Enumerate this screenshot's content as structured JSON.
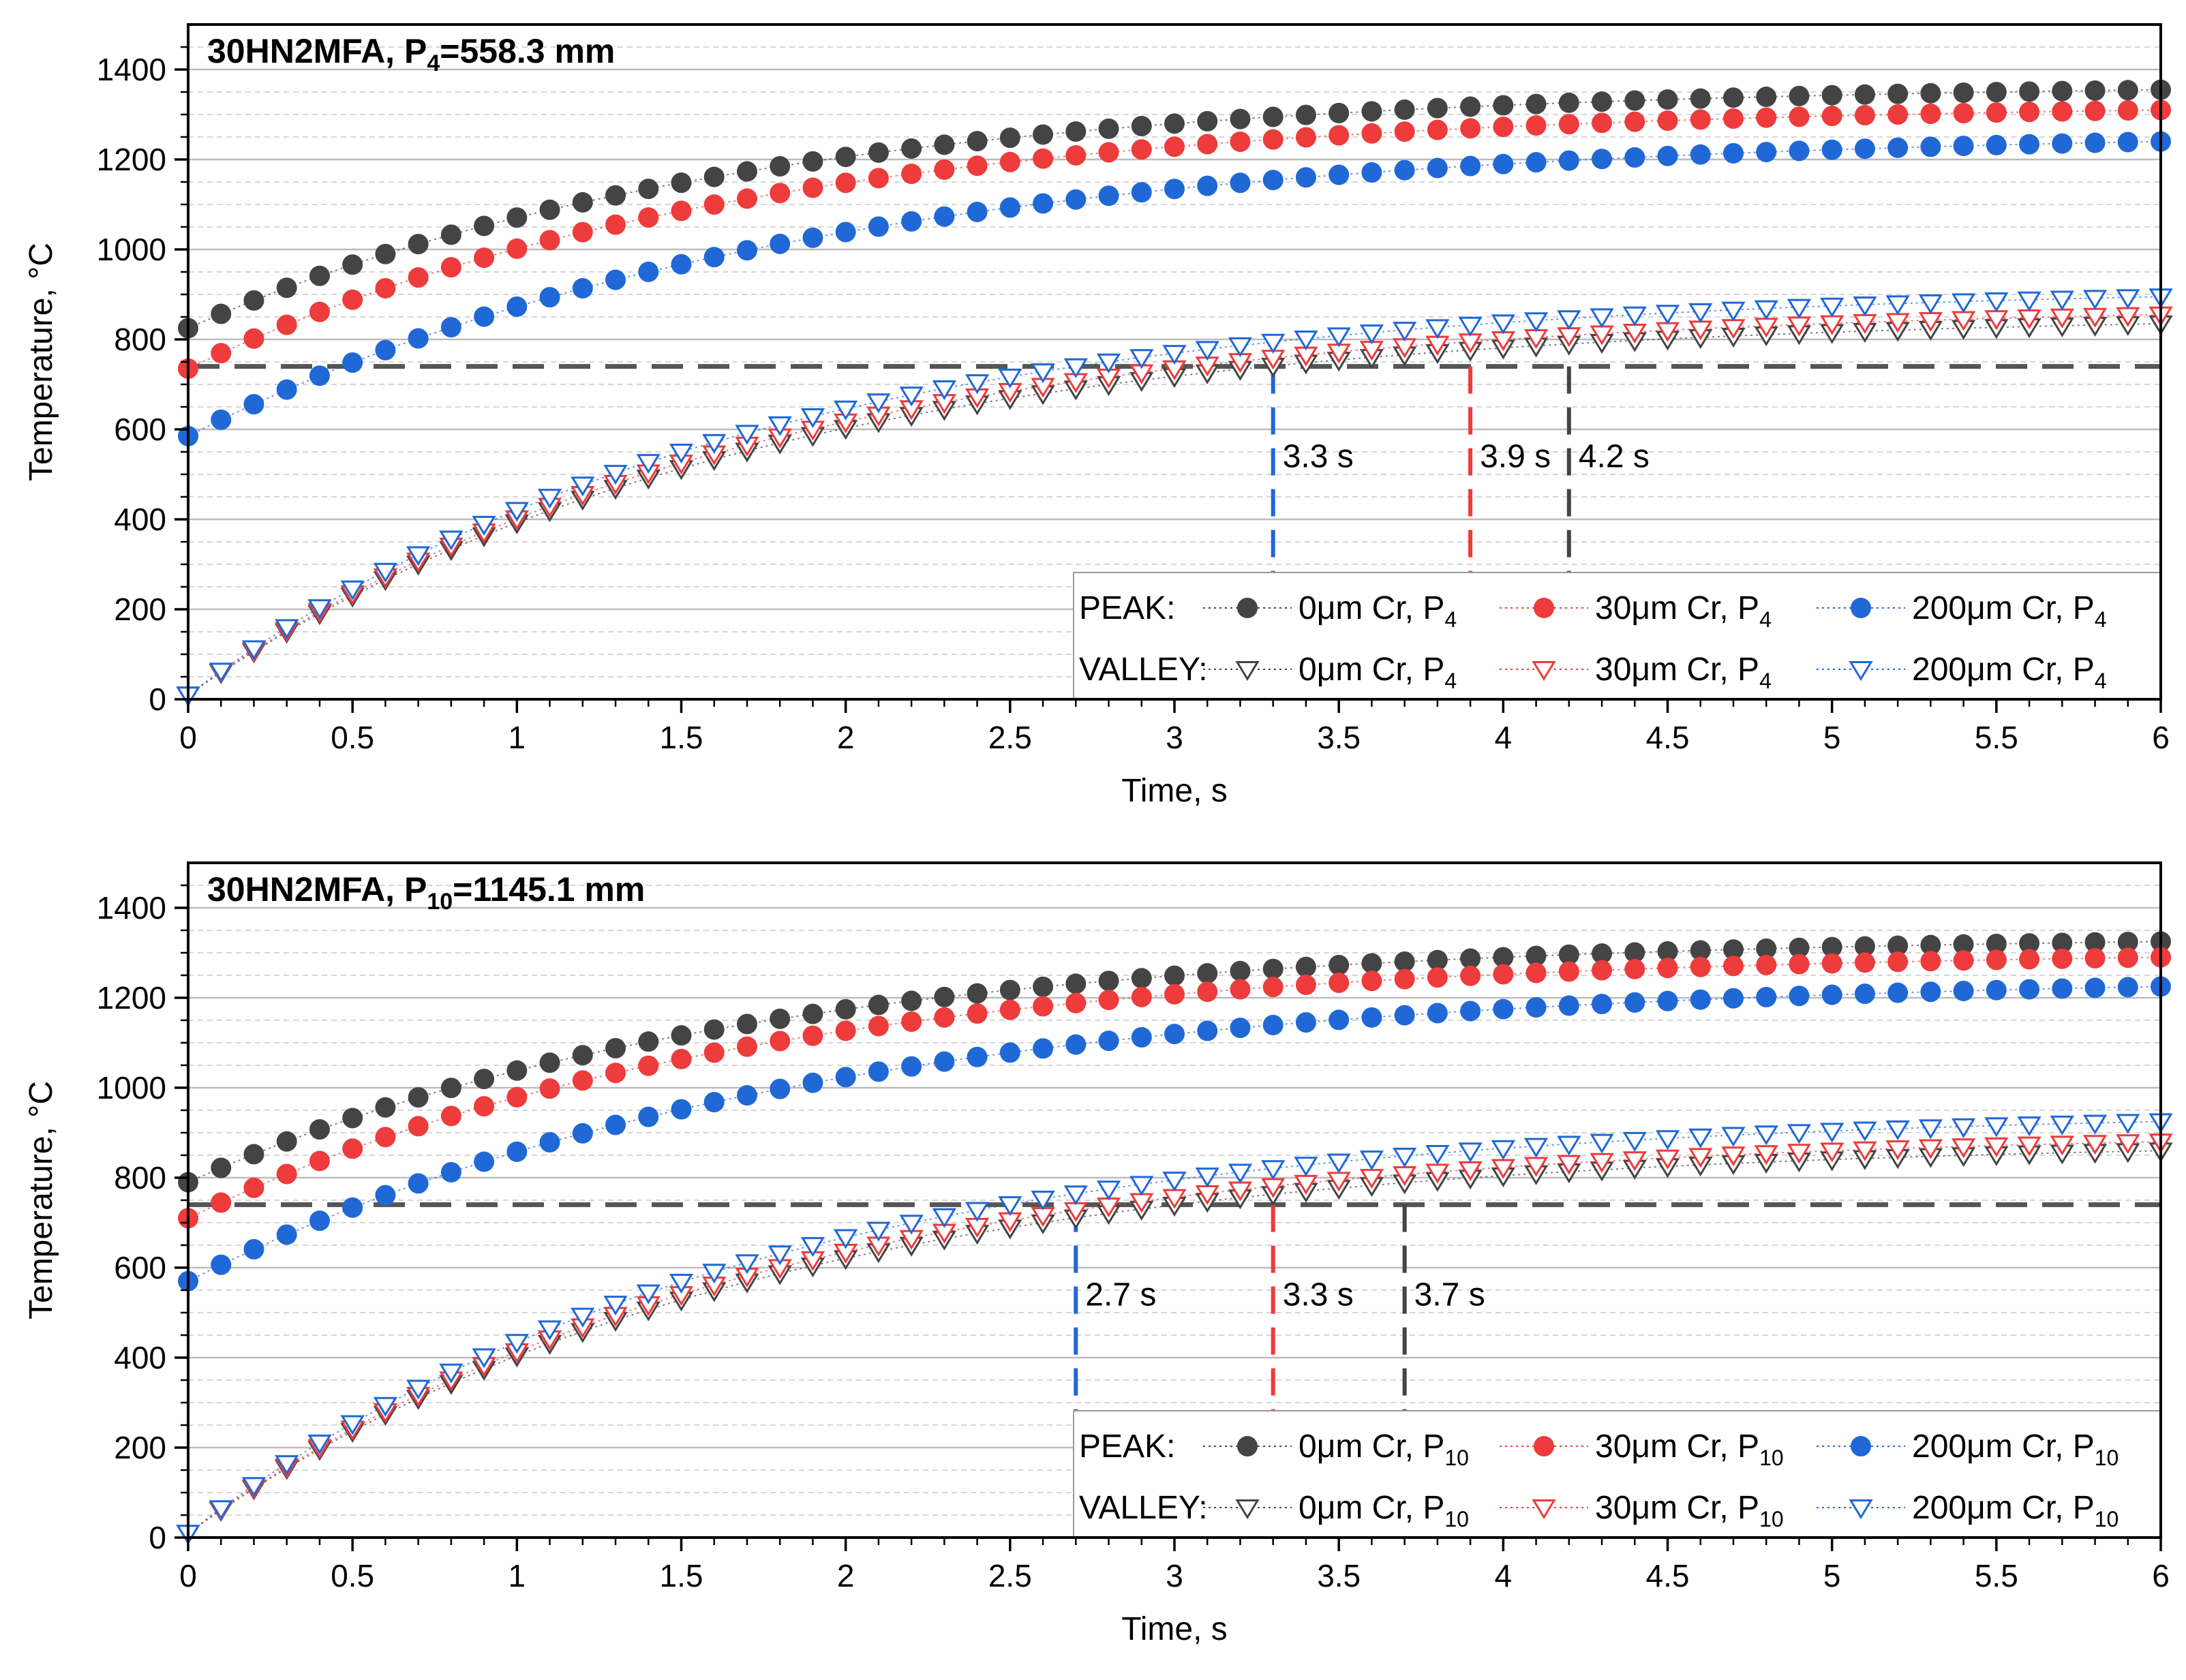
{
  "chart_data": [
    {
      "type": "scatter",
      "title": "30HN2MFA, P",
      "title_sub": "4",
      "title_tail": "=558.3 mm",
      "xlabel": "Time, s",
      "ylabel": "Temperature, °C",
      "xlim": [
        0,
        6
      ],
      "ylim": [
        0,
        1500
      ],
      "xticks": [
        "0",
        "0.5",
        "1",
        "1.5",
        "2",
        "2.5",
        "3",
        "3.5",
        "4",
        "4.5",
        "5",
        "5.5",
        "6"
      ],
      "yticks": [
        "0",
        "200",
        "400",
        "600",
        "800",
        "1000",
        "1200",
        "1400"
      ],
      "reference_line": {
        "y": 740,
        "color": "#555555"
      },
      "legend_position": "bottom-right",
      "legend_rows": [
        {
          "label": "PEAK:",
          "kind": "peak"
        },
        {
          "label": "VALLEY:",
          "kind": "valley"
        }
      ],
      "series": [
        {
          "kind": "peak",
          "marker": "circle",
          "name": "0μm Cr, P",
          "sub": "4",
          "color": "#444444",
          "t0": 825,
          "t6": 1355,
          "shape": 0.6
        },
        {
          "kind": "peak",
          "marker": "circle",
          "name": "30μm Cr, P",
          "sub": "4",
          "color": "#ee3b3b",
          "t0": 735,
          "t6": 1310,
          "shape": 0.6
        },
        {
          "kind": "peak",
          "marker": "circle",
          "name": "200μm Cr, P",
          "sub": "4",
          "color": "#1f68d6",
          "t0": 585,
          "t6": 1240,
          "shape": 0.55
        },
        {
          "kind": "valley",
          "marker": "triangle-down",
          "name": "0μm Cr, P",
          "sub": "4",
          "color": "#444444",
          "t0": 10,
          "t6": 835,
          "shape": 0.6
        },
        {
          "kind": "valley",
          "marker": "triangle-down",
          "name": "30μm Cr, P",
          "sub": "4",
          "color": "#ee3b3b",
          "t0": 10,
          "t6": 855,
          "shape": 0.6
        },
        {
          "kind": "valley",
          "marker": "triangle-down",
          "name": "200μm Cr, P",
          "sub": "4",
          "color": "#1f68d6",
          "t0": 10,
          "t6": 895,
          "shape": 0.6
        }
      ],
      "crossings": [
        {
          "x": 3.3,
          "label": "3.3 s",
          "color": "#1f68d6"
        },
        {
          "x": 3.9,
          "label": "3.9 s",
          "color": "#ee3b3b"
        },
        {
          "x": 4.2,
          "label": "4.2 s",
          "color": "#444444"
        }
      ]
    },
    {
      "type": "scatter",
      "title": "30HN2MFA, P",
      "title_sub": "10",
      "title_tail": "=1145.1 mm",
      "xlabel": "Time, s",
      "ylabel": "Temperature, °C",
      "xlim": [
        0,
        6
      ],
      "ylim": [
        0,
        1500
      ],
      "xticks": [
        "0",
        "0.5",
        "1",
        "1.5",
        "2",
        "2.5",
        "3",
        "3.5",
        "4",
        "4.5",
        "5",
        "5.5",
        "6"
      ],
      "yticks": [
        "0",
        "200",
        "400",
        "600",
        "800",
        "1000",
        "1200",
        "1400"
      ],
      "reference_line": {
        "y": 740,
        "color": "#555555"
      },
      "legend_position": "bottom-right",
      "legend_rows": [
        {
          "label": "PEAK:",
          "kind": "peak"
        },
        {
          "label": "VALLEY:",
          "kind": "valley"
        }
      ],
      "series": [
        {
          "kind": "peak",
          "marker": "circle",
          "name": "0μm Cr, P",
          "sub": "10",
          "color": "#444444",
          "t0": 790,
          "t6": 1325,
          "shape": 0.6
        },
        {
          "kind": "peak",
          "marker": "circle",
          "name": "30μm Cr, P",
          "sub": "10",
          "color": "#ee3b3b",
          "t0": 710,
          "t6": 1290,
          "shape": 0.6
        },
        {
          "kind": "peak",
          "marker": "circle",
          "name": "200μm Cr, P",
          "sub": "10",
          "color": "#1f68d6",
          "t0": 570,
          "t6": 1225,
          "shape": 0.55
        },
        {
          "kind": "valley",
          "marker": "triangle-down",
          "name": "0μm Cr, P",
          "sub": "10",
          "color": "#444444",
          "t0": 10,
          "t6": 860,
          "shape": 0.6
        },
        {
          "kind": "valley",
          "marker": "triangle-down",
          "name": "30μm Cr, P",
          "sub": "10",
          "color": "#ee3b3b",
          "t0": 10,
          "t6": 880,
          "shape": 0.6
        },
        {
          "kind": "valley",
          "marker": "triangle-down",
          "name": "200μm Cr, P",
          "sub": "10",
          "color": "#1f68d6",
          "t0": 10,
          "t6": 925,
          "shape": 0.6
        }
      ],
      "crossings": [
        {
          "x": 2.7,
          "label": "2.7 s",
          "color": "#1f68d6"
        },
        {
          "x": 3.3,
          "label": "3.3 s",
          "color": "#ee3b3b"
        },
        {
          "x": 3.7,
          "label": "3.7 s",
          "color": "#444444"
        }
      ]
    }
  ]
}
